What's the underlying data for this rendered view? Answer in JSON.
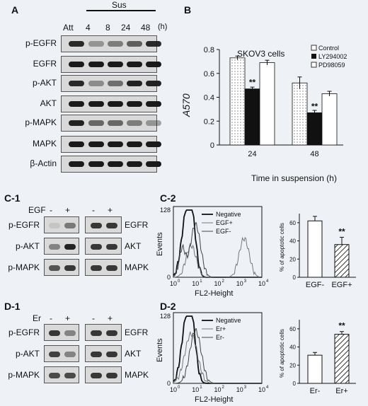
{
  "panel_a": {
    "letter": "A",
    "header_att": "Att",
    "header_sus": "Sus",
    "times": [
      "4",
      "8",
      "24",
      "48"
    ],
    "time_unit": "(h)",
    "rows": [
      "p-EGFR",
      "EGFR",
      "p-AKT",
      "AKT",
      "p-MAPK",
      "MAPK",
      "β-Actin"
    ]
  },
  "panel_b": {
    "letter": "B",
    "cell_label": "SKOV3 cells",
    "legend": [
      "Control",
      "LY294002",
      "PD98059"
    ],
    "significance": "**"
  },
  "chart_data": {
    "type": "bar",
    "categories": [
      "24",
      "48"
    ],
    "xlabel": "Time in suspension (h)",
    "ylabel": "A570",
    "ylim": [
      0,
      0.8
    ],
    "yticks": [
      "0",
      "0.2",
      "0.4",
      "0.6",
      "0.8"
    ],
    "series": [
      {
        "name": "Control",
        "values": [
          0.73,
          0.52
        ],
        "errors": [
          0.015,
          0.05
        ]
      },
      {
        "name": "LY294002",
        "values": [
          0.47,
          0.27
        ],
        "errors": [
          0.015,
          0.02
        ]
      },
      {
        "name": "PD98059",
        "values": [
          0.69,
          0.43
        ],
        "errors": [
          0.02,
          0.02
        ]
      }
    ],
    "annotations": [
      {
        "category": "24",
        "series": "LY294002",
        "text": "**"
      },
      {
        "category": "48",
        "series": "LY294002",
        "text": "**"
      }
    ],
    "grid": false,
    "legend_position": "top-right"
  },
  "panel_c1": {
    "letter": "C-1",
    "treatment": "EGF",
    "minus": "-",
    "plus": "+",
    "left_rows": [
      "p-EGFR",
      "p-AKT",
      "p-MAPK"
    ],
    "right_rows": [
      "EGFR",
      "AKT",
      "MAPK"
    ]
  },
  "panel_c2": {
    "letter": "C-2",
    "hist_legend": [
      "Negative",
      "EGF+",
      "EGF-"
    ],
    "y_top": "128",
    "y_zero": "0",
    "ylabel": "Events",
    "xlabel": "FL2-Height",
    "x_ticks": [
      "10",
      "10",
      "10",
      "10",
      "10"
    ],
    "x_exps": [
      "0",
      "1",
      "2",
      "3",
      "4"
    ],
    "bar_ylabel": "% of apoptotic cells",
    "bar_yticks": [
      "0",
      "20",
      "40",
      "60"
    ],
    "bar_categories": [
      "EGF-",
      "EGF+"
    ],
    "bar_values": [
      62,
      36
    ],
    "bar_errors": [
      5,
      8
    ],
    "significance": "**"
  },
  "panel_d1": {
    "letter": "D-1",
    "treatment": "Er",
    "minus": "-",
    "plus": "+",
    "left_rows": [
      "p-EGFR",
      "p-AKT",
      "p-MAPK"
    ],
    "right_rows": [
      "EGFR",
      "AKT",
      "MAPK"
    ]
  },
  "panel_d2": {
    "letter": "D-2",
    "hist_legend": [
      "Negative",
      "Er+",
      "Er-"
    ],
    "y_top": "128",
    "y_zero": "0",
    "ylabel": "Events",
    "xlabel": "FL2-Height",
    "x_ticks": [
      "10",
      "10",
      "10",
      "10",
      "10"
    ],
    "x_exps": [
      "0",
      "1",
      "2",
      "3",
      "4"
    ],
    "bar_ylabel": "% of apoptotic cells",
    "bar_yticks": [
      "0",
      "20",
      "40",
      "60"
    ],
    "bar_categories": [
      "Er-",
      "Er+"
    ],
    "bar_values": [
      31,
      54
    ],
    "bar_errors": [
      3,
      3
    ],
    "significance": "**"
  }
}
